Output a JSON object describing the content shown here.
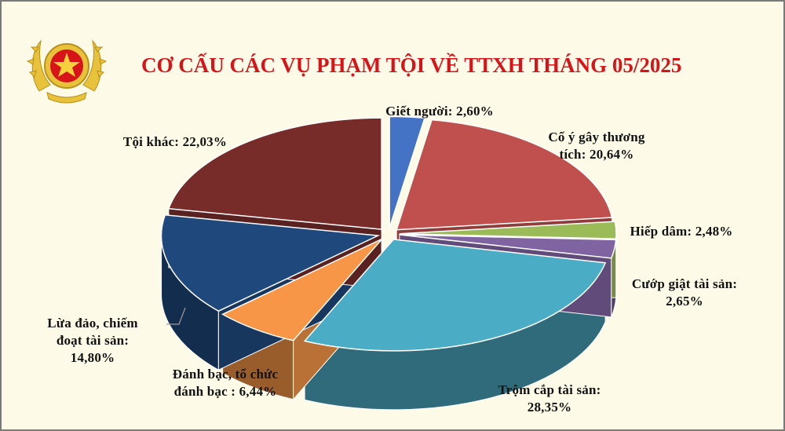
{
  "chart_data": {
    "type": "pie",
    "title": "CƠ CẤU CÁC VỤ PHẠM TỘI VỀ TTXH THÁNG 05/2025",
    "slices": [
      {
        "name_lines": [
          "Giết người: 2,60%"
        ],
        "value": 2.6,
        "value_label": "2,60%",
        "color": "#4472c4"
      },
      {
        "name_lines": [
          "Cố ý gây thương",
          "tích: 20,64%"
        ],
        "value": 20.64,
        "value_label": "20,64%",
        "color": "#c0504d"
      },
      {
        "name_lines": [
          "Hiếp dâm:  2,48%"
        ],
        "value": 2.48,
        "value_label": "2,48%",
        "color": "#9bbb59"
      },
      {
        "name_lines": [
          "Cướp  giật tài sản:",
          "2,65%"
        ],
        "value": 2.65,
        "value_label": "2,65%",
        "color": "#8064a2"
      },
      {
        "name_lines": [
          "Trộm  cắp tài sản:",
          "28,35%"
        ],
        "value": 28.35,
        "value_label": "28,35%",
        "color": "#4bacc6"
      },
      {
        "name_lines": [
          "Đánh bạc, tổ chức",
          "đánh bạc : 6,44%"
        ],
        "value": 6.44,
        "value_label": "6,44%",
        "color": "#f79646"
      },
      {
        "name_lines": [
          "Lừa đảo,  chiếm",
          "đoạt  tài sản:",
          "14,80%"
        ],
        "value": 14.8,
        "value_label": "14,80%",
        "color": "#1f497d"
      },
      {
        "name_lines": [
          "Tội khác: 22,03%"
        ],
        "value": 22.03,
        "value_label": "22,03%",
        "color": "#772c2a"
      }
    ],
    "legend": "none",
    "style": "3d exploded pie with data callout labels"
  }
}
